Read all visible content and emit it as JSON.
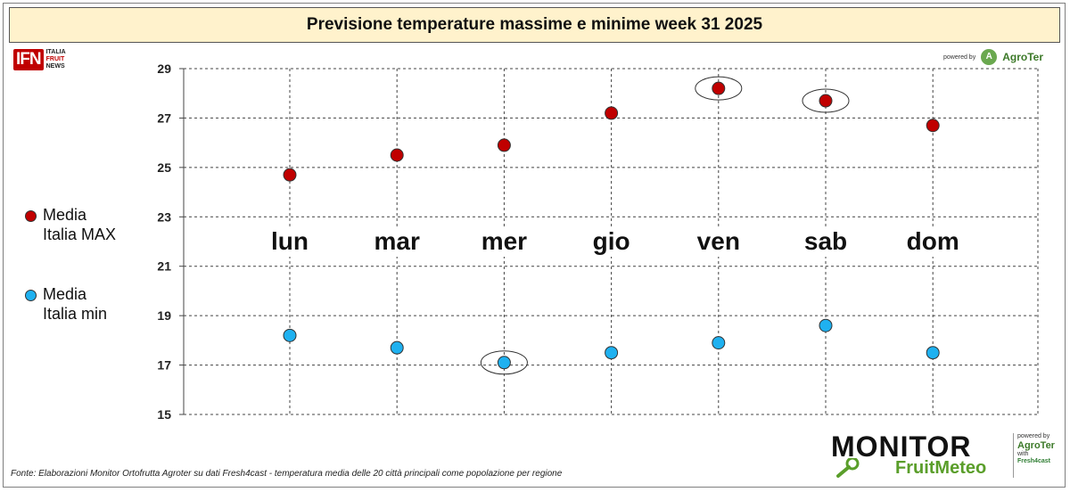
{
  "header": {
    "title": "Previsione temperature massime e minime week 31 2025"
  },
  "logos": {
    "ifn_badge": "IFN",
    "ifn_line1": "ITALIA",
    "ifn_line2": "FRUIT",
    "ifn_line3": "NEWS",
    "powered_by": "powered by",
    "agroter": "AgroTer",
    "monitor": "MONITOR",
    "fruitmeteo": "FruitMeteo",
    "powered_by_bottom": "powered by",
    "agroter_bottom": "AgroTer",
    "with": "with",
    "fresh4cast": "Fresh4cast"
  },
  "legend": {
    "max_line1": "Media",
    "max_line2": "Italia MAX",
    "min_line1": "Media",
    "min_line2": "Italia min"
  },
  "source": "Fonte: Elaborazioni Monitor Ortofrutta Agroter su dati Fresh4cast - temperatura media delle 20 città principali come popolazione per regione",
  "colors": {
    "max": "#c00000",
    "min": "#1fb1f0",
    "title_bg": "#fff2cc"
  },
  "chart_data": {
    "type": "scatter",
    "categories": [
      "lun",
      "mar",
      "mer",
      "gio",
      "ven",
      "sab",
      "dom"
    ],
    "series": [
      {
        "name": "Media Italia MAX",
        "values": [
          24.7,
          25.5,
          25.9,
          27.2,
          28.2,
          27.7,
          26.7
        ],
        "color": "#c00000",
        "highlight": [
          false,
          false,
          false,
          false,
          true,
          true,
          false
        ]
      },
      {
        "name": "Media Italia min",
        "values": [
          18.2,
          17.7,
          17.1,
          17.5,
          17.9,
          18.6,
          17.5
        ],
        "color": "#1fb1f0",
        "highlight": [
          false,
          false,
          true,
          false,
          false,
          false,
          false
        ]
      }
    ],
    "yticks": [
      15,
      17,
      19,
      21,
      23,
      25,
      27,
      29
    ],
    "ylim": [
      15,
      29
    ],
    "grid": true,
    "legend_position": "left",
    "xlabel": "",
    "ylabel": ""
  }
}
